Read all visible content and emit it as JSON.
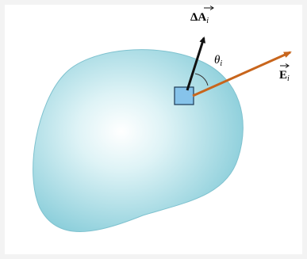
{
  "labels": {
    "area_vector": {
      "symbol": "ΔA",
      "subscript": "i"
    },
    "angle": {
      "symbol": "θ",
      "subscript": "i"
    },
    "field": {
      "symbol": "E",
      "subscript": "i"
    }
  }
}
